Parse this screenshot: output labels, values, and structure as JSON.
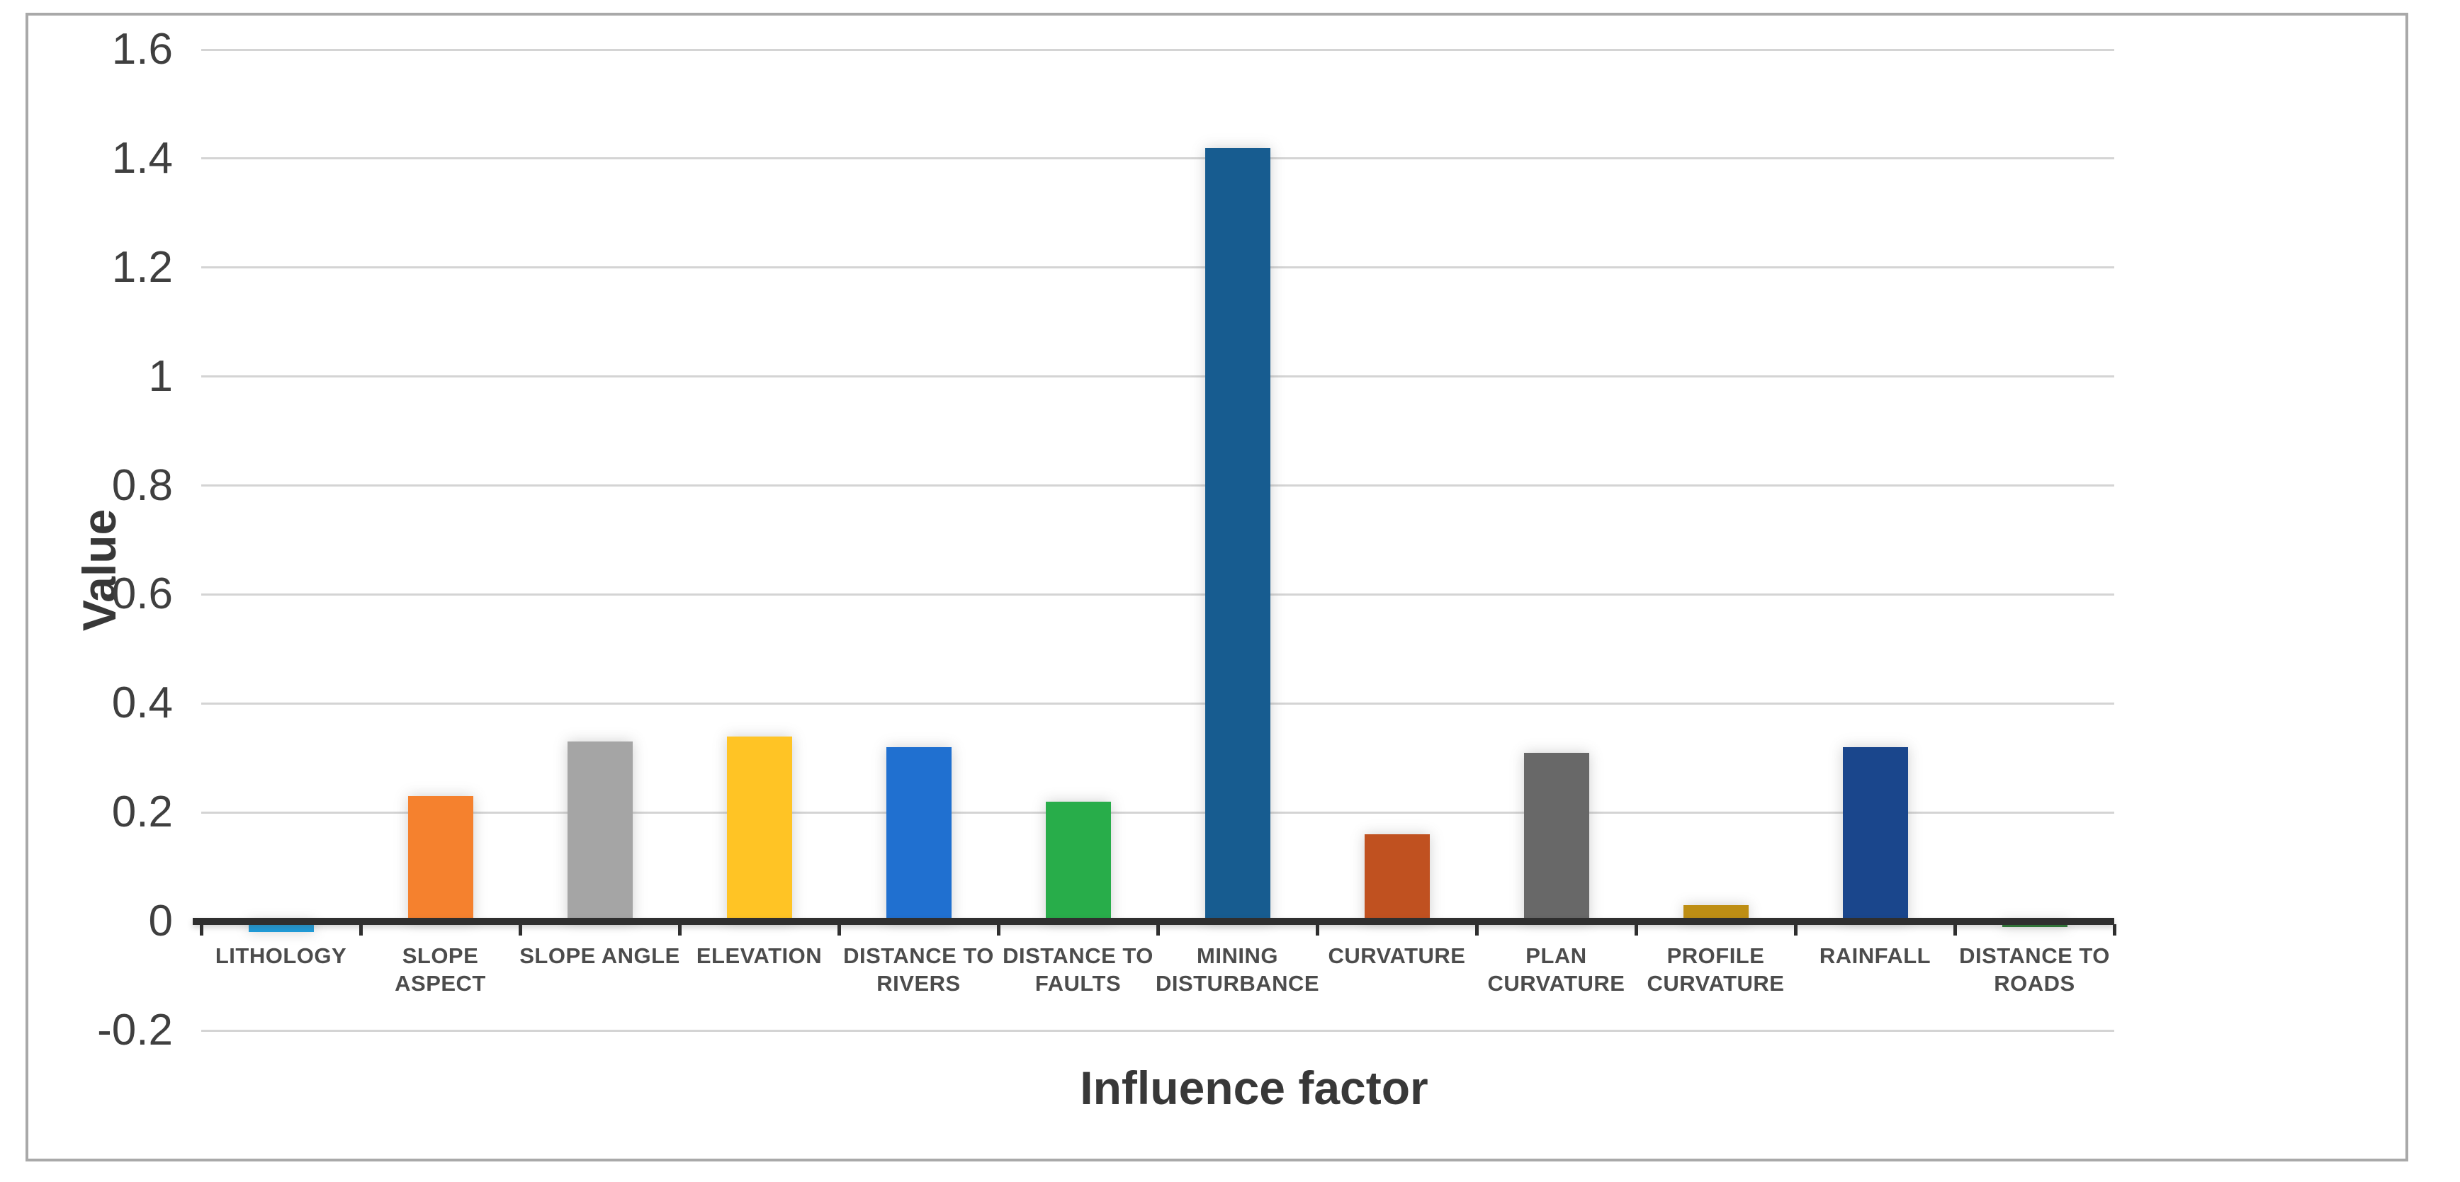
{
  "chart_data": {
    "type": "bar",
    "title": "",
    "xlabel": "Influence factor",
    "ylabel": "Value",
    "categories": [
      "LITHOLOGY",
      "SLOPE ASPECT",
      "SLOPE ANGLE",
      "ELEVATION",
      "DISTANCE TO RIVERS",
      "DISTANCE TO FAULTS",
      "MINING DISTURBANCE",
      "CURVATURE",
      "PLAN CURVATURE",
      "PROFILE CURVATURE",
      "RAINFALL",
      "DISTANCE TO ROADS"
    ],
    "category_label_lines": [
      [
        "LITHOLOGY"
      ],
      [
        "SLOPE ASPECT"
      ],
      [
        "SLOPE ANGLE"
      ],
      [
        "ELEVATION"
      ],
      [
        "DISTANCE TO",
        "RIVERS"
      ],
      [
        "DISTANCE TO",
        "FAULTS"
      ],
      [
        "MINING",
        "DISTURBANCE"
      ],
      [
        "CURVATURE"
      ],
      [
        "PLAN",
        "CURVATURE"
      ],
      [
        "PROFILE",
        "CURVATURE"
      ],
      [
        "RAINFALL"
      ],
      [
        "DISTANCE TO",
        "ROADS"
      ]
    ],
    "values": [
      -0.02,
      0.23,
      0.33,
      0.34,
      0.32,
      0.22,
      1.42,
      0.16,
      0.31,
      0.03,
      0.32,
      -0.01
    ],
    "bar_colors": [
      "#1F9CD9",
      "#F5812E",
      "#A5A5A5",
      "#FFC425",
      "#2070D0",
      "#28AD4A",
      "#175C90",
      "#C05120",
      "#686868",
      "#BE8E14",
      "#1A468C",
      "#2B7D34"
    ],
    "y_tick_labels": [
      "1.6",
      "1.4",
      "1.2",
      "1",
      "0.8",
      "0.6",
      "0.4",
      "0.2",
      "0",
      "-0.2"
    ],
    "ylim": [
      -0.2,
      1.6
    ],
    "y_tick_step": 0.2,
    "grid": "horizontal-only",
    "legend": "none"
  },
  "style_colors": {
    "gridline": "#D4D4D4",
    "axis_line": "#2F2F2F",
    "frame_border": "#A9A9A9",
    "tick_text": "#3F3F3F",
    "category_text": "#4C4C4C",
    "title_text": "#383838",
    "background": "#FFFFFF"
  }
}
